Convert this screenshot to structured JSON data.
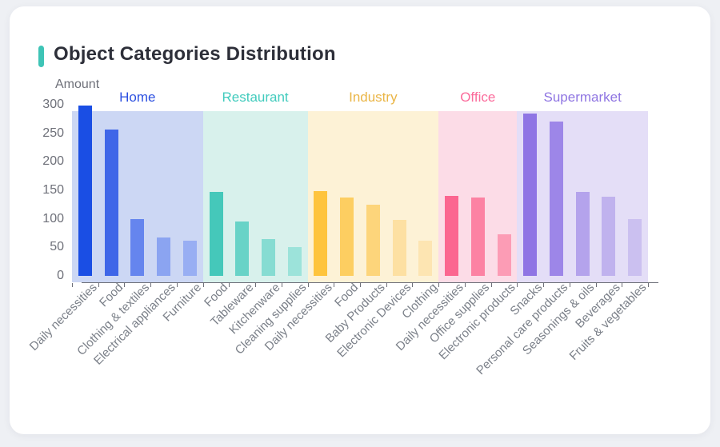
{
  "card": {
    "title": "Object Categories Distribution",
    "accent_color": "#3ec4b6"
  },
  "chart_data": {
    "type": "bar",
    "title": "Object Categories Distribution",
    "xlabel": "",
    "ylabel": "Amount",
    "ylim": [
      0,
      300
    ],
    "yticks": [
      0,
      50,
      100,
      150,
      200,
      250,
      300
    ],
    "grid": false,
    "legend_position": "none",
    "groups": [
      {
        "name": "Home",
        "label_color": "#2c50e0",
        "panel_color": "#ccd7f4",
        "bars": [
          {
            "label": "Daily necessities",
            "value": 298,
            "color": "#1a4ee4"
          },
          {
            "label": "Food",
            "value": 257,
            "color": "#3f66e8"
          },
          {
            "label": "Clothing & textiles",
            "value": 100,
            "color": "#6585ee"
          },
          {
            "label": "Electrical appliances",
            "value": 67,
            "color": "#8ba4f1"
          },
          {
            "label": "Furniture",
            "value": 62,
            "color": "#98aef3"
          }
        ]
      },
      {
        "name": "Restaurant",
        "label_color": "#41cbbd",
        "panel_color": "#d8f1ec",
        "bars": [
          {
            "label": "Food",
            "value": 147,
            "color": "#45c8ba"
          },
          {
            "label": "Tableware",
            "value": 96,
            "color": "#68d3c7"
          },
          {
            "label": "Kitchenware",
            "value": 64,
            "color": "#86dcd2"
          },
          {
            "label": "Cleaning supplies",
            "value": 50,
            "color": "#9ce3da"
          }
        ]
      },
      {
        "name": "Industry",
        "label_color": "#eab546",
        "panel_color": "#fdf2d6",
        "bars": [
          {
            "label": "Daily necessities",
            "value": 149,
            "color": "#fec43e"
          },
          {
            "label": "Food",
            "value": 137,
            "color": "#fdce61"
          },
          {
            "label": "Baby Products",
            "value": 125,
            "color": "#fdd57b"
          },
          {
            "label": "Electronic Devices",
            "value": 98,
            "color": "#fde0a2"
          },
          {
            "label": "Clothing",
            "value": 62,
            "color": "#fde5b2"
          }
        ]
      },
      {
        "name": "Office",
        "label_color": "#fb6b9b",
        "panel_color": "#fcdce7",
        "bars": [
          {
            "label": "Daily necessities",
            "value": 140,
            "color": "#fb6690"
          },
          {
            "label": "Office supplies",
            "value": 137,
            "color": "#fc82a3"
          },
          {
            "label": "Electronic products",
            "value": 73,
            "color": "#fc9cb5"
          }
        ]
      },
      {
        "name": "Supermarket",
        "label_color": "#8f75e2",
        "panel_color": "#e4def7",
        "bars": [
          {
            "label": "Snacks",
            "value": 284,
            "color": "#8f75e4"
          },
          {
            "label": "Personal care products",
            "value": 271,
            "color": "#9d86e8"
          },
          {
            "label": "Seasonings & oils",
            "value": 147,
            "color": "#b4a3ec"
          },
          {
            "label": "Beverages",
            "value": 139,
            "color": "#c0b2ee"
          },
          {
            "label": "Fruits & vegetables",
            "value": 100,
            "color": "#cbc0f0"
          }
        ]
      }
    ]
  }
}
